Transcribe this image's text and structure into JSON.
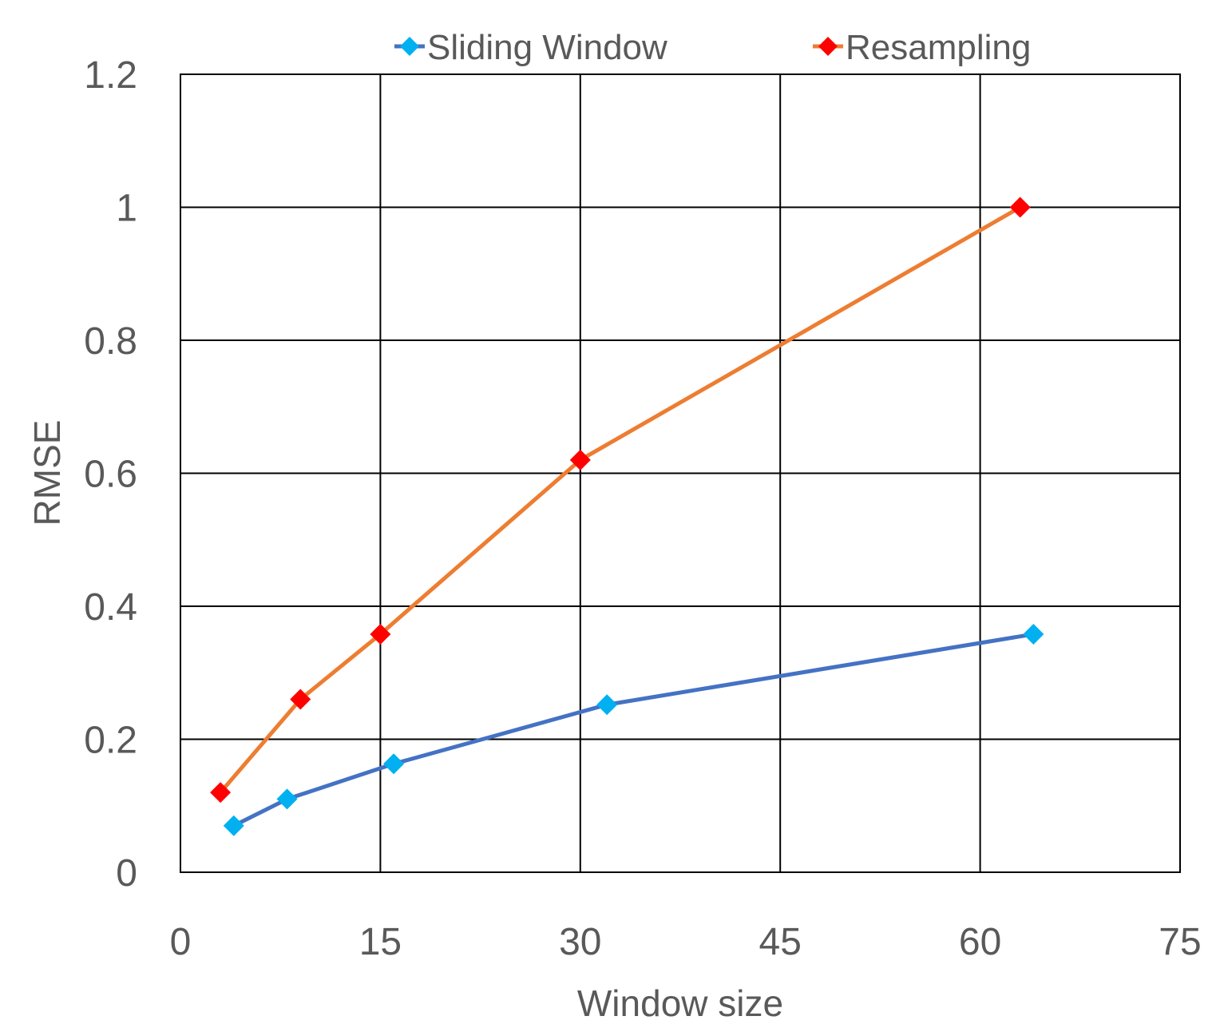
{
  "chart_data": {
    "type": "line",
    "title": "",
    "xlabel": "Window size",
    "ylabel": "RMSE",
    "xlim": [
      0,
      75
    ],
    "ylim": [
      0,
      1.2
    ],
    "xticks": [
      0,
      15,
      30,
      45,
      60,
      75
    ],
    "yticks": [
      0,
      0.2,
      0.4,
      0.6,
      0.8,
      1,
      1.2
    ],
    "xtick_labels": [
      "0",
      "15",
      "30",
      "45",
      "60",
      "75"
    ],
    "ytick_labels": [
      "0",
      "0.2",
      "0.4",
      "0.6",
      "0.8",
      "1",
      "1.2"
    ],
    "grid": true,
    "legend_position": "top",
    "series": [
      {
        "name": "Sliding Window",
        "line_color": "#4472C4",
        "marker_color": "#00B0F0",
        "marker": "diamond",
        "x": [
          4,
          8,
          16,
          32,
          64
        ],
        "y": [
          0.07,
          0.11,
          0.163,
          0.252,
          0.358
        ]
      },
      {
        "name": "Resampling",
        "line_color": "#ED7D31",
        "marker_color": "#FF0000",
        "marker": "diamond",
        "x": [
          3,
          9,
          15,
          30,
          63
        ],
        "y": [
          0.12,
          0.26,
          0.358,
          0.62,
          1.0
        ]
      }
    ]
  }
}
